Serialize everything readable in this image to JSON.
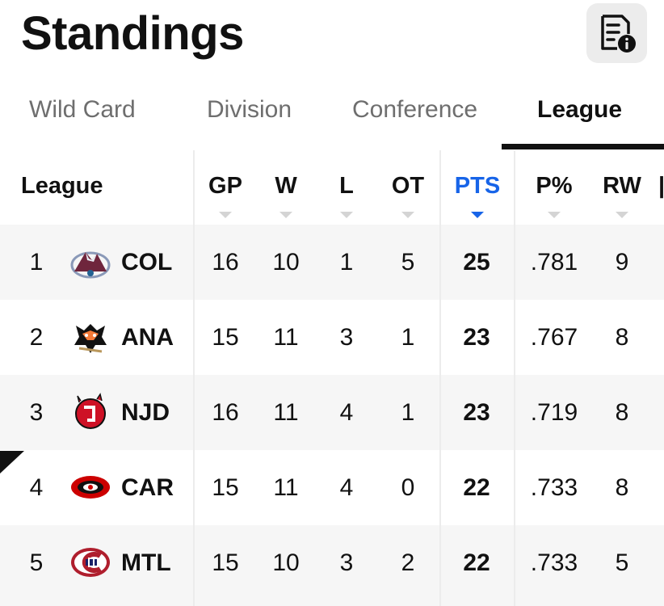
{
  "header": {
    "title": "Standings",
    "info_icon": "document-info-icon"
  },
  "tabs": [
    {
      "label": "Wild Card"
    },
    {
      "label": "Division"
    },
    {
      "label": "Conference"
    },
    {
      "label": "League",
      "active": true
    }
  ],
  "table": {
    "section_label": "League",
    "columns": [
      "GP",
      "W",
      "L",
      "OT",
      "PTS",
      "P%",
      "RW"
    ],
    "sorted_column": "PTS",
    "rows": [
      {
        "rank": "1",
        "team": "COL",
        "gp": "16",
        "w": "10",
        "l": "1",
        "ot": "5",
        "pts": "25",
        "pct": ".781",
        "rw": "9"
      },
      {
        "rank": "2",
        "team": "ANA",
        "gp": "15",
        "w": "11",
        "l": "3",
        "ot": "1",
        "pts": "23",
        "pct": ".767",
        "rw": "8"
      },
      {
        "rank": "3",
        "team": "NJD",
        "gp": "16",
        "w": "11",
        "l": "4",
        "ot": "1",
        "pts": "23",
        "pct": ".719",
        "rw": "8"
      },
      {
        "rank": "4",
        "team": "CAR",
        "gp": "15",
        "w": "11",
        "l": "4",
        "ot": "0",
        "pts": "22",
        "pct": ".733",
        "rw": "8"
      },
      {
        "rank": "5",
        "team": "MTL",
        "gp": "15",
        "w": "10",
        "l": "3",
        "ot": "2",
        "pts": "22",
        "pct": ".733",
        "rw": "5"
      }
    ]
  },
  "colors": {
    "accent": "#1764e8",
    "text": "#111111",
    "muted": "#6e6e6e"
  }
}
